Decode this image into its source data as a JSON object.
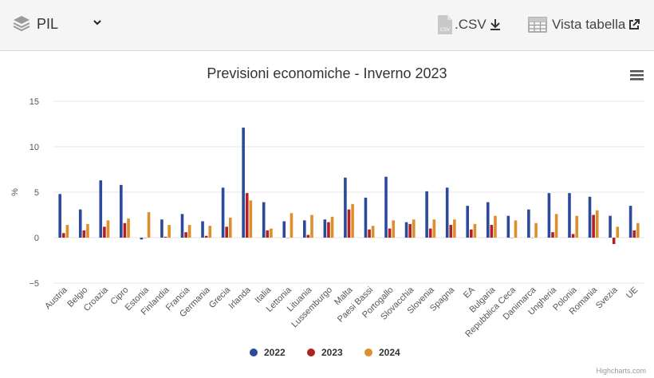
{
  "toolbar": {
    "indicator_select": {
      "value": "PIL"
    },
    "csv_label": ".CSV",
    "table_view_label": "Vista tabella"
  },
  "chart_data": {
    "type": "bar",
    "title": "Previsioni economiche - Inverno 2023",
    "ylabel": "%",
    "xlabel": "",
    "ylim": [
      -5,
      15
    ],
    "yticks": [
      -5,
      0,
      5,
      10,
      15
    ],
    "ytick_labels": [
      "−5",
      "0",
      "5",
      "10",
      "15"
    ],
    "grid": true,
    "legend_position": "bottom-center",
    "categories": [
      "Austria",
      "Belgio",
      "Croazia",
      "Cipro",
      "Estonia",
      "Finlandia",
      "Francia",
      "Germania",
      "Grecia",
      "Irlanda",
      "Italia",
      "Lettonia",
      "Lituania",
      "Lussemburgo",
      "Malta",
      "Paesi Bassi",
      "Portogallo",
      "Slovacchia",
      "Slovenia",
      "Spagna",
      "EA",
      "Bulgaria",
      "Repubblica Ceca",
      "Danimarca",
      "Ungheria",
      "Polonia",
      "Romania",
      "Svezia",
      "UE"
    ],
    "series": [
      {
        "name": "2022",
        "color": "#2b4a9b",
        "values": [
          4.8,
          3.1,
          6.3,
          5.8,
          -0.2,
          2.0,
          2.6,
          1.8,
          5.5,
          12.1,
          3.9,
          1.8,
          1.9,
          2.0,
          6.6,
          4.4,
          6.7,
          1.7,
          5.1,
          5.5,
          3.5,
          3.9,
          2.4,
          3.1,
          4.9,
          4.9,
          4.5,
          2.4,
          3.5
        ]
      },
      {
        "name": "2023",
        "color": "#b22222",
        "values": [
          0.5,
          0.8,
          1.2,
          1.6,
          0.0,
          0.1,
          0.6,
          0.2,
          1.2,
          4.9,
          0.8,
          0.0,
          0.3,
          1.7,
          3.1,
          0.9,
          1.0,
          1.5,
          1.0,
          1.4,
          0.9,
          1.4,
          0.0,
          0.0,
          0.6,
          0.4,
          2.5,
          -0.7,
          0.8
        ]
      },
      {
        "name": "2024",
        "color": "#e08e2b",
        "values": [
          1.4,
          1.5,
          1.9,
          2.1,
          2.8,
          1.4,
          1.4,
          1.3,
          2.2,
          4.1,
          1.0,
          2.7,
          2.5,
          2.3,
          3.7,
          1.3,
          1.9,
          2.0,
          2.0,
          2.0,
          1.5,
          2.4,
          1.9,
          1.6,
          2.6,
          2.4,
          3.0,
          1.2,
          1.6
        ]
      }
    ],
    "credits": "Highcharts.com"
  },
  "icons": {
    "layers": "layers-icon",
    "chevron": "chevron-down-icon",
    "csv_file": "csv-file-icon",
    "download": "download-icon",
    "table": "table-icon",
    "external": "external-link-icon",
    "menu": "hamburger-menu-icon"
  }
}
